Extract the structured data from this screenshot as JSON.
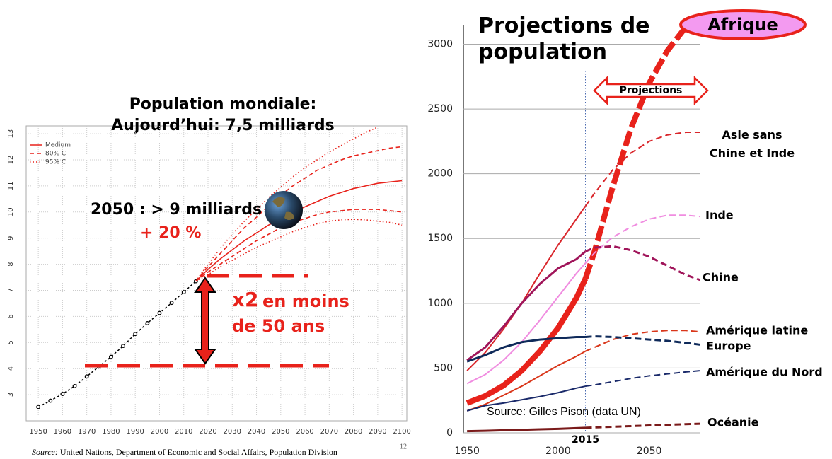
{
  "chart_data": [
    {
      "type": "line",
      "title": "Population mondiale:",
      "subtitle": "Aujourd’hui: 7,5 milliards",
      "x": [
        1950,
        1955,
        1960,
        1965,
        1970,
        1975,
        1980,
        1985,
        1990,
        1995,
        2000,
        2005,
        2010,
        2015,
        2020,
        2025,
        2030,
        2035,
        2040,
        2045,
        2050,
        2055,
        2060,
        2065,
        2070,
        2075,
        2080,
        2085,
        2090,
        2095,
        2100
      ],
      "series": [
        {
          "color": "#000000",
          "style": "points",
          "values": [
            2.53,
            2.77,
            3.03,
            3.33,
            3.7,
            4.08,
            4.45,
            4.87,
            5.33,
            5.74,
            6.13,
            6.52,
            6.93,
            7.35,
            null,
            null,
            null,
            null,
            null,
            null,
            null,
            null,
            null,
            null,
            null,
            null,
            null,
            null,
            null,
            null,
            null
          ]
        },
        {
          "name": "Medium",
          "color": "#e8221b",
          "style": "solid",
          "values": [
            null,
            null,
            null,
            null,
            null,
            null,
            null,
            null,
            null,
            null,
            null,
            null,
            null,
            7.35,
            7.8,
            8.2,
            8.55,
            8.9,
            9.2,
            9.5,
            9.75,
            10.0,
            10.2,
            10.4,
            10.6,
            10.75,
            10.9,
            11.0,
            11.1,
            11.15,
            11.2
          ]
        },
        {
          "name": "80% CI",
          "color": "#e8221b",
          "style": "dashed",
          "values": [
            null,
            null,
            null,
            null,
            null,
            null,
            null,
            null,
            null,
            null,
            null,
            null,
            null,
            7.35,
            7.9,
            8.4,
            8.9,
            9.4,
            9.8,
            10.25,
            10.65,
            11.0,
            11.3,
            11.6,
            11.8,
            12.0,
            12.15,
            12.25,
            12.35,
            12.45,
            12.5
          ],
          "lower": [
            null,
            null,
            null,
            null,
            null,
            null,
            null,
            null,
            null,
            null,
            null,
            null,
            null,
            7.35,
            7.7,
            8.0,
            8.3,
            8.6,
            8.9,
            9.15,
            9.4,
            9.6,
            9.75,
            9.9,
            10.0,
            10.05,
            10.1,
            10.1,
            10.1,
            10.05,
            10.0
          ]
        },
        {
          "name": "95% CI",
          "color": "#e8221b",
          "style": "dotted",
          "values": [
            null,
            null,
            null,
            null,
            null,
            null,
            null,
            null,
            null,
            null,
            null,
            null,
            null,
            7.35,
            8.0,
            8.6,
            9.15,
            9.65,
            10.1,
            10.55,
            10.95,
            11.35,
            11.7,
            12.0,
            12.3,
            12.55,
            12.8,
            13.05,
            13.25,
            null,
            null
          ],
          "lower": [
            null,
            null,
            null,
            null,
            null,
            null,
            null,
            null,
            null,
            null,
            null,
            null,
            null,
            7.35,
            7.6,
            7.9,
            8.15,
            8.4,
            8.65,
            8.85,
            9.05,
            9.25,
            9.4,
            9.55,
            9.65,
            9.7,
            9.72,
            9.7,
            9.65,
            9.6,
            9.5
          ]
        }
      ],
      "xlim": [
        1945,
        2102
      ],
      "xticks": [
        1950,
        1960,
        1970,
        1980,
        1990,
        2000,
        2010,
        2020,
        2030,
        2040,
        2050,
        2060,
        2070,
        2080,
        2090,
        2100
      ],
      "ylim": [
        2,
        13.3
      ],
      "yticks": [
        3,
        4,
        5,
        6,
        7,
        8,
        9,
        10,
        11,
        12,
        13
      ],
      "grid": true,
      "annotations": {
        "a2050": "2050 : > 9 milliards",
        "plus": "+ 20 %",
        "x2": "x2",
        "moins": "en moins",
        "ans": "de 50 ans"
      },
      "source_label": "Source:",
      "source": "United Nations, Department of Economic and Social Affairs, Population Division",
      "page_number": "12"
    },
    {
      "type": "line",
      "title": "Projections de population",
      "x": [
        1950,
        1960,
        1970,
        1980,
        1990,
        2000,
        2010,
        2015,
        2020,
        2030,
        2040,
        2050,
        2060,
        2070,
        2078
      ],
      "projection_start": 2015,
      "projection_label": "Projections",
      "source": "Source: Gilles Pison (data UN)",
      "series": [
        {
          "name": "Afrique",
          "color": "#e8221b",
          "width": 8,
          "values": [
            230,
            285,
            365,
            480,
            630,
            810,
            1040,
            1190,
            1400,
            1900,
            2350,
            2700,
            2950,
            3130,
            null
          ]
        },
        {
          "name": "Asie sans Chine et Inde",
          "color": "#d9262b",
          "width": 2,
          "values": [
            480,
            620,
            800,
            1000,
            1230,
            1450,
            1650,
            1750,
            1850,
            2030,
            2160,
            2250,
            2300,
            2320,
            2320
          ]
        },
        {
          "name": "Inde",
          "color": "#f08ce0",
          "width": 2,
          "values": [
            380,
            450,
            560,
            700,
            870,
            1050,
            1230,
            1310,
            1390,
            1510,
            1590,
            1650,
            1680,
            1680,
            1670
          ]
        },
        {
          "name": "Chine",
          "color": "#a0155a",
          "width": 3,
          "values": [
            560,
            660,
            820,
            1000,
            1150,
            1270,
            1340,
            1400,
            1430,
            1440,
            1410,
            1360,
            1290,
            1220,
            1180
          ]
        },
        {
          "name": "Amérique latine",
          "color": "#d9361a",
          "width": 2,
          "values": [
            170,
            220,
            290,
            360,
            440,
            520,
            590,
            630,
            660,
            720,
            760,
            780,
            790,
            790,
            780
          ]
        },
        {
          "name": "Europe",
          "color": "#0f2a5a",
          "width": 3,
          "values": [
            550,
            600,
            660,
            700,
            720,
            730,
            740,
            740,
            745,
            740,
            730,
            720,
            710,
            695,
            680
          ]
        },
        {
          "name": "Amérique du Nord",
          "color": "#1a2a6a",
          "width": 2,
          "values": [
            170,
            210,
            230,
            255,
            280,
            310,
            345,
            360,
            370,
            395,
            420,
            440,
            455,
            470,
            480
          ]
        },
        {
          "name": "Océanie",
          "color": "#7a1a1a",
          "width": 3,
          "values": [
            13,
            16,
            20,
            23,
            27,
            31,
            36,
            39,
            42,
            47,
            52,
            57,
            62,
            67,
            70
          ]
        }
      ],
      "xlim": [
        1948,
        2082
      ],
      "xticks": [
        1950,
        2000,
        2050
      ],
      "ylim": [
        0,
        3150
      ],
      "yticks": [
        0,
        500,
        1000,
        1500,
        2000,
        2500,
        3000
      ],
      "grid": true
    }
  ]
}
